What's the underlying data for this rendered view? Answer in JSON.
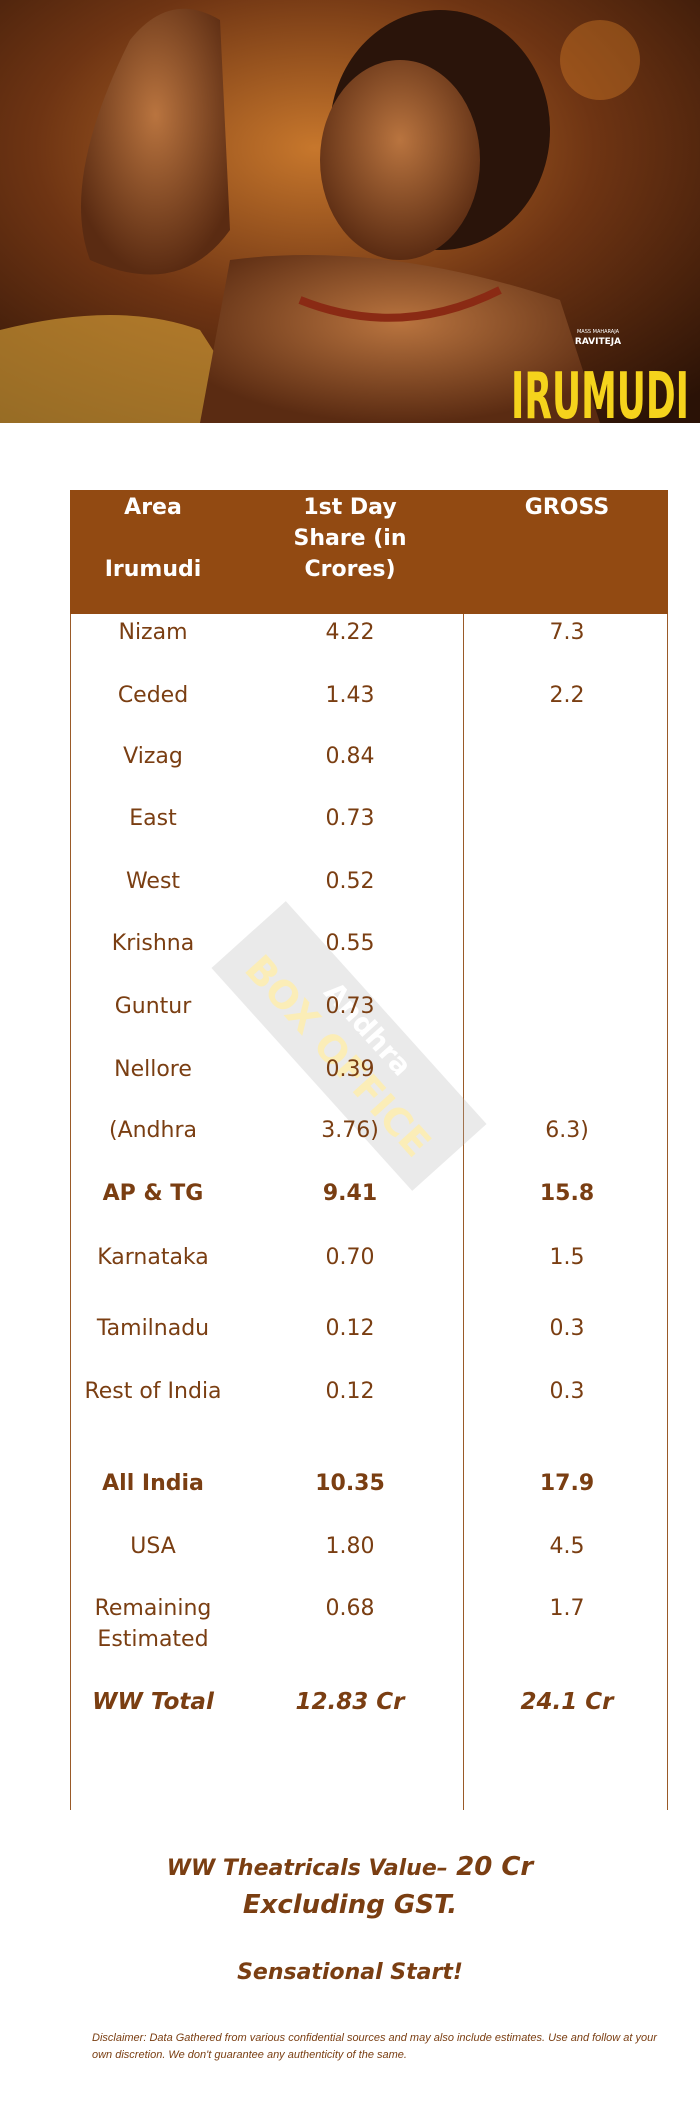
{
  "poster": {
    "tagline": "MASS MAHARAJA",
    "star": "RAVITEJA",
    "movie_title": "IRUMUDI"
  },
  "table": {
    "header": {
      "area": [
        "Area",
        "Irumudi"
      ],
      "share": "1st Day Share (in Crores)",
      "gross": "GROSS"
    },
    "rows": [
      [
        "Nizam",
        "4.22",
        "7.3"
      ],
      [
        "Ceded",
        "1.43",
        "2.2"
      ],
      [
        "Vizag",
        "0.84"
      ],
      [
        "East",
        "0.73"
      ],
      [
        "West",
        "0.52"
      ],
      [
        "Krishna",
        "0.55"
      ],
      [
        "Guntur",
        "0.73"
      ],
      [
        "Nellore",
        "0.39"
      ],
      [
        "(Andhra",
        "3.76)",
        "6.3)"
      ],
      [
        "AP & TG",
        "9.41",
        "15.8"
      ],
      [
        "Karnataka",
        "0.70",
        "1.5"
      ],
      [
        "Tamilnadu",
        "0.12",
        "0.3"
      ],
      [
        "Rest of India",
        "0.12",
        "0.3"
      ],
      [
        "All India",
        "10.35",
        "17.9"
      ],
      [
        "USA",
        "1.80",
        "4.5"
      ],
      [
        "Remaining Estimated",
        "0.68",
        "1.7"
      ],
      [
        "WW Total",
        "12.83 Cr",
        "24.1 Cr"
      ]
    ]
  },
  "watermark": [
    "Andhra",
    "BOX OFFICE"
  ],
  "footer": {
    "theatrical_label": "WW Theatricals Value–",
    "theatrical_value": "20 Cr Excluding GST.",
    "verdict": "Sensational Start!",
    "disclaimer": "Disclaimer:  Data Gathered from various confidential sources and may also include estimates. Use and follow at your own discretion.  We don't guarantee any authenticity of the same."
  }
}
